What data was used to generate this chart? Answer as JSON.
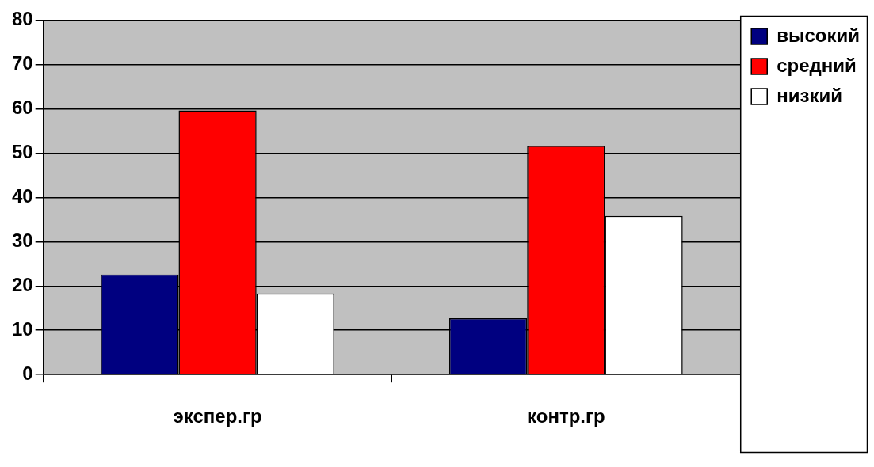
{
  "chart_data": {
    "type": "bar",
    "categories": [
      "экспер.гр",
      "контр.гр"
    ],
    "series": [
      {
        "name": "высокий",
        "color": "#000080",
        "values": [
          22.6,
          12.7
        ]
      },
      {
        "name": "средний",
        "color": "#ff0000",
        "values": [
          59.6,
          51.6
        ]
      },
      {
        "name": "низкий",
        "color": "#ffffff",
        "values": [
          18.3,
          35.8
        ]
      }
    ],
    "ylim": [
      0,
      80
    ],
    "yticks": [
      0,
      10,
      20,
      30,
      40,
      50,
      60,
      70,
      80
    ],
    "grid": "y",
    "legend": "top right"
  }
}
